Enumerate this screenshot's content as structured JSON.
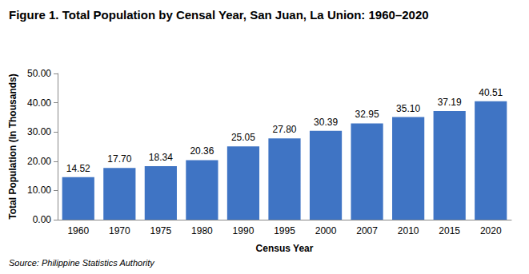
{
  "chart_data": {
    "type": "bar",
    "title": "Figure 1. Total Population by Censal Year, San Juan, La Union: 1960–2020",
    "source": "Source: Philippine Statistics Authority",
    "x_label": "Census Year",
    "y_label": "Total Population (In Thousands)",
    "categories": [
      "1960",
      "1970",
      "1975",
      "1980",
      "1990",
      "1995",
      "2000",
      "2007",
      "2010",
      "2015",
      "2020"
    ],
    "values": [
      14.52,
      17.7,
      18.34,
      20.36,
      25.05,
      27.8,
      30.39,
      32.95,
      35.1,
      37.19,
      40.51
    ],
    "value_labels": [
      "14.52",
      "17.70",
      "18.34",
      "20.36",
      "25.05",
      "27.80",
      "30.39",
      "32.95",
      "35.10",
      "37.19",
      "40.51"
    ],
    "color": "#3f74c4",
    "ylim": [
      0,
      50
    ],
    "yticks": [
      {
        "value": 0,
        "label": "0.00"
      },
      {
        "value": 10,
        "label": "10.00"
      },
      {
        "value": 20,
        "label": "20.00"
      },
      {
        "value": 30,
        "label": "30.00"
      },
      {
        "value": 40,
        "label": "40.00"
      },
      {
        "value": 50,
        "label": "50.00"
      }
    ],
    "grid": false,
    "data_labels": true
  }
}
